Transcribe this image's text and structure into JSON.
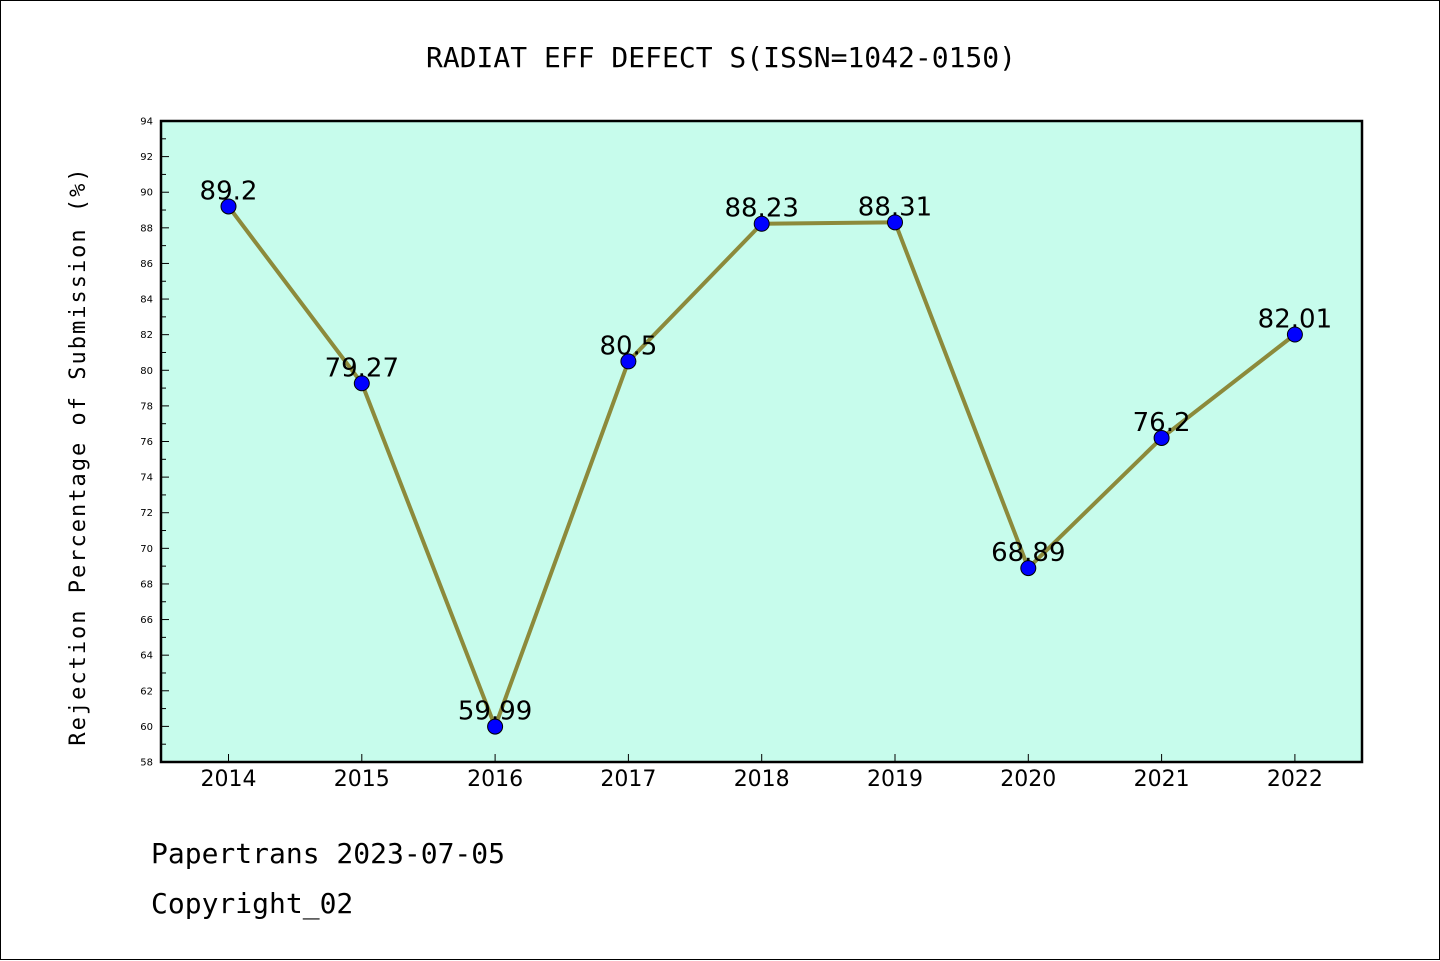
{
  "colors": {
    "plot_background": "#c7fcec",
    "line": "#8c8a3b",
    "marker": "#0000ff"
  },
  "footer": {
    "line1": "Papertrans 2023-07-05",
    "line2": "Copyright_02"
  },
  "chart_data": {
    "type": "line",
    "title": "RADIAT EFF DEFECT S(ISSN=1042-0150)",
    "xlabel": "",
    "ylabel": "Rejection Percentage of Submission (%)",
    "categories": [
      "2014",
      "2015",
      "2016",
      "2017",
      "2018",
      "2019",
      "2020",
      "2021",
      "2022"
    ],
    "series": [
      {
        "values": [
          89.2,
          79.27,
          59.99,
          80.5,
          88.23,
          88.31,
          68.89,
          76.2,
          82.01
        ],
        "labels": [
          "89.2",
          "79.27",
          "59.99",
          "80.5",
          "88.23",
          "88.31",
          "68.89",
          "76.2",
          "82.01"
        ]
      }
    ],
    "ylim": [
      58,
      94
    ],
    "yticks": [
      58,
      60,
      62,
      64,
      66,
      68,
      70,
      72,
      74,
      76,
      78,
      80,
      82,
      84,
      86,
      88,
      90,
      92,
      94
    ],
    "grid": false,
    "legend": "none"
  }
}
